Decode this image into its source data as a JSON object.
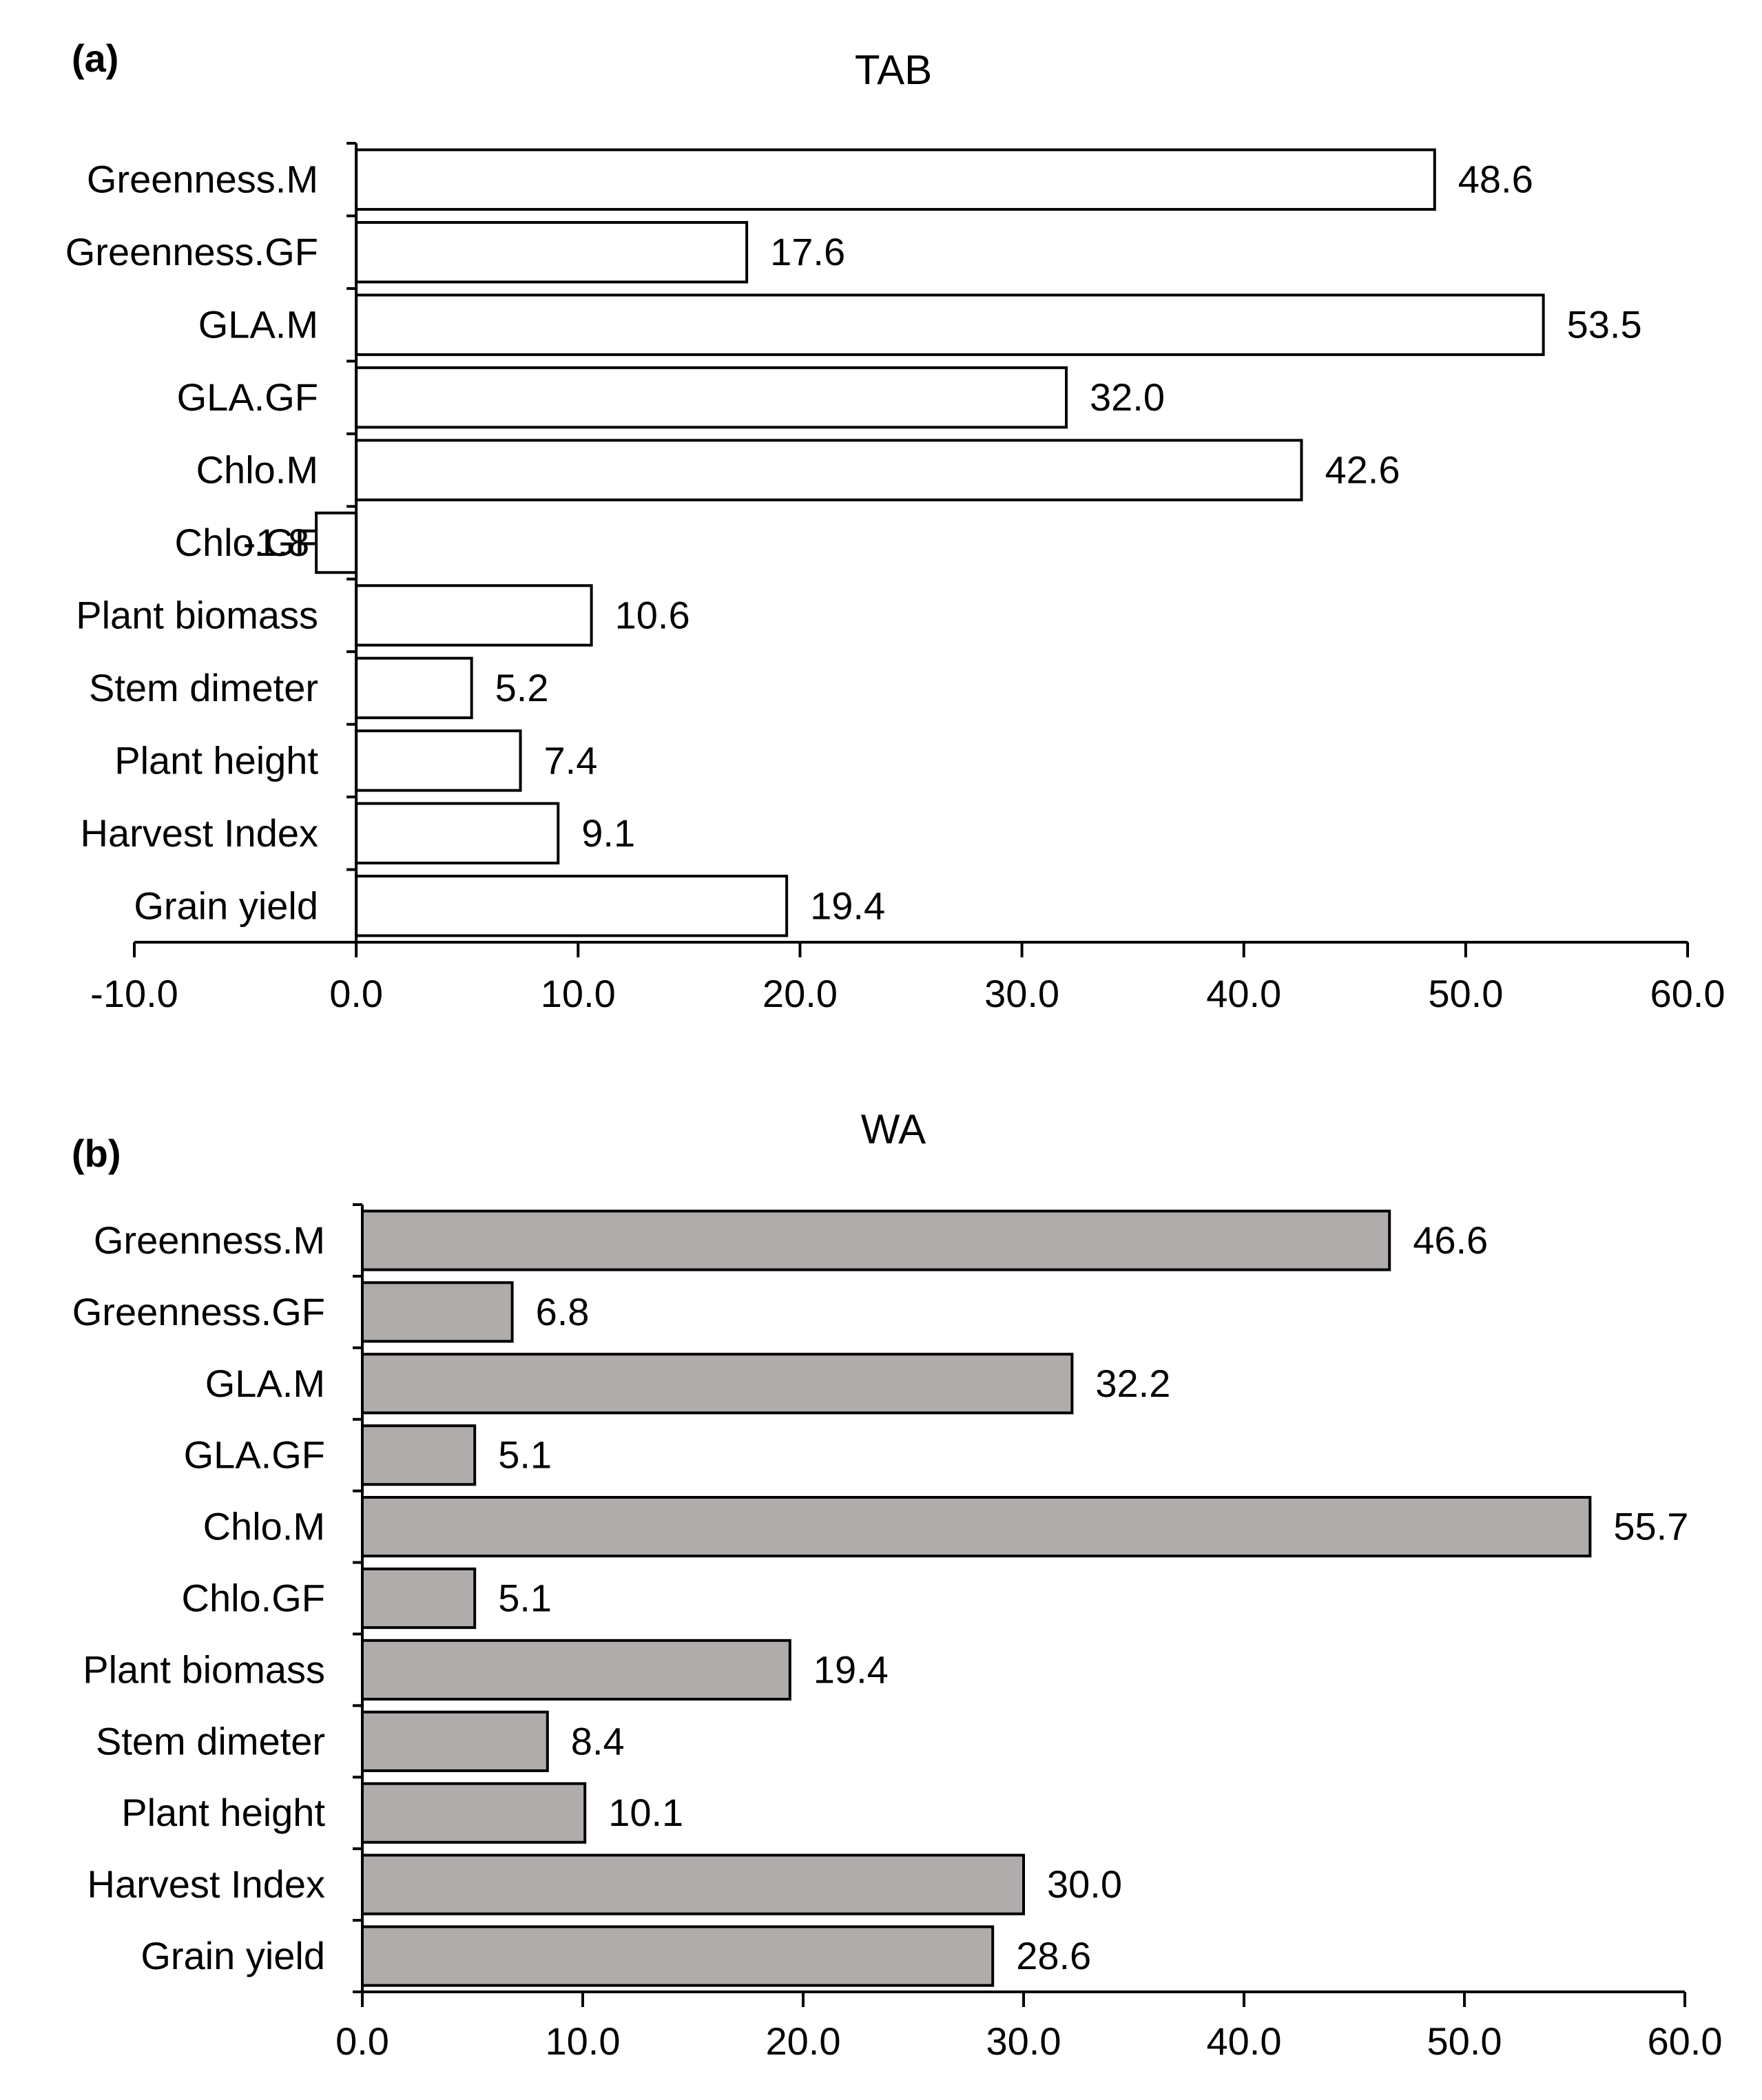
{
  "chart_data": [
    {
      "type": "bar",
      "orientation": "horizontal",
      "panel_label": "(a)",
      "title": "TAB",
      "categories": [
        "Greenness.M",
        "Greenness.GF",
        "GLA.M",
        "GLA.GF",
        "Chlo.M",
        "Chlo.GF",
        "Plant biomass",
        "Stem dimeter",
        "Plant height",
        "Harvest Index",
        "Grain yield"
      ],
      "values": [
        48.6,
        17.6,
        53.5,
        32.0,
        42.6,
        -1.8,
        10.6,
        5.2,
        7.4,
        9.1,
        19.4
      ],
      "value_labels": [
        "48.6",
        "17.6",
        "53.5",
        "32.0",
        "42.6",
        "-1.8",
        "10.6",
        "5.2",
        "7.4",
        "9.1",
        "19.4"
      ],
      "xlim": [
        -10,
        60
      ],
      "xticks": [
        -10,
        0,
        10,
        20,
        30,
        40,
        50,
        60
      ],
      "xtick_labels": [
        "-10.0",
        "0.0",
        "10.0",
        "20.0",
        "30.0",
        "40.0",
        "50.0",
        "60.0"
      ],
      "xlabel": "",
      "ylabel": "",
      "bar_color": "#ffffff",
      "edge_color": "#000000",
      "grid": false
    },
    {
      "type": "bar",
      "orientation": "horizontal",
      "panel_label": "(b)",
      "title": "WA",
      "categories": [
        "Greenness.M",
        "Greenness.GF",
        "GLA.M",
        "GLA.GF",
        "Chlo.M",
        "Chlo.GF",
        "Plant biomass",
        "Stem dimeter",
        "Plant height",
        "Harvest Index",
        "Grain yield"
      ],
      "values": [
        46.6,
        6.8,
        32.2,
        5.1,
        55.7,
        5.1,
        19.4,
        8.4,
        10.1,
        30.0,
        28.6
      ],
      "value_labels": [
        "46.6",
        "6.8",
        "32.2",
        "5.1",
        "55.7",
        "5.1",
        "19.4",
        "8.4",
        "10.1",
        "30.0",
        "28.6"
      ],
      "xlim": [
        0,
        60
      ],
      "xticks": [
        0,
        10,
        20,
        30,
        40,
        50,
        60
      ],
      "xtick_labels": [
        "0.0",
        "10.0",
        "20.0",
        "30.0",
        "40.0",
        "50.0",
        "60.0"
      ],
      "xlabel": "",
      "ylabel": "",
      "bar_color": "#b0acac",
      "edge_color": "#000000",
      "grid": false
    }
  ]
}
